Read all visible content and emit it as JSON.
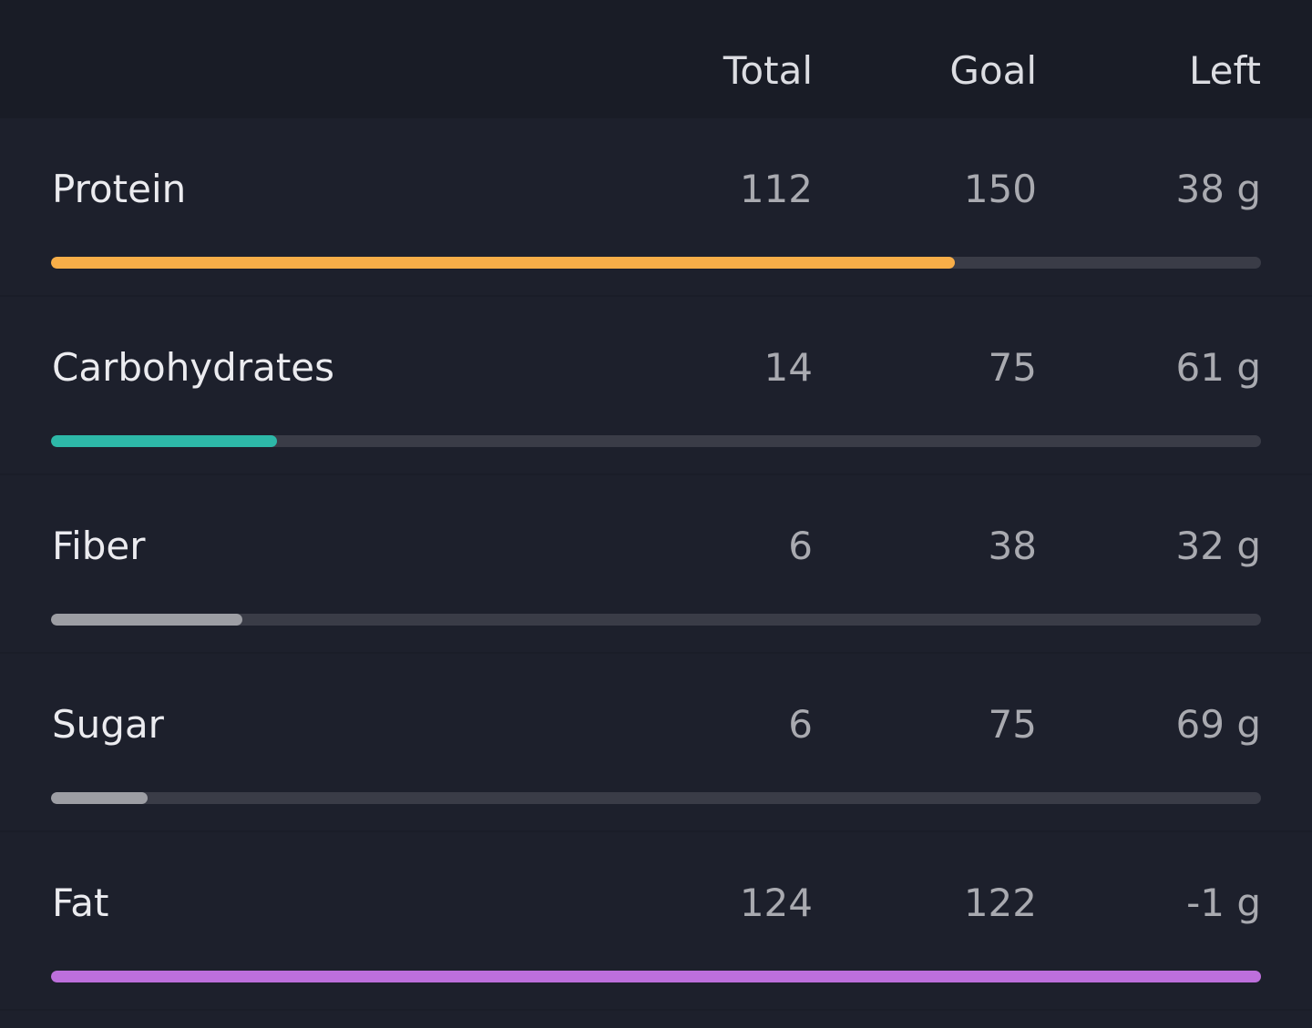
{
  "header": {
    "columns": [
      "Total",
      "Goal",
      "Left"
    ]
  },
  "rows": [
    {
      "name": "Protein",
      "total": 112,
      "goal": 150,
      "left": "38 g",
      "color": "#f8ae48"
    },
    {
      "name": "Carbohydrates",
      "total": 14,
      "goal": 75,
      "left": "61 g",
      "color": "#2db8a8"
    },
    {
      "name": "Fiber",
      "total": 6,
      "goal": 38,
      "left": "32 g",
      "color": "#9d9ea4"
    },
    {
      "name": "Sugar",
      "total": 6,
      "goal": 75,
      "left": "69 g",
      "color": "#9d9ea4"
    },
    {
      "name": "Fat",
      "total": 124,
      "goal": 122,
      "left": "-1 g",
      "color": "#bd6fdc"
    }
  ]
}
